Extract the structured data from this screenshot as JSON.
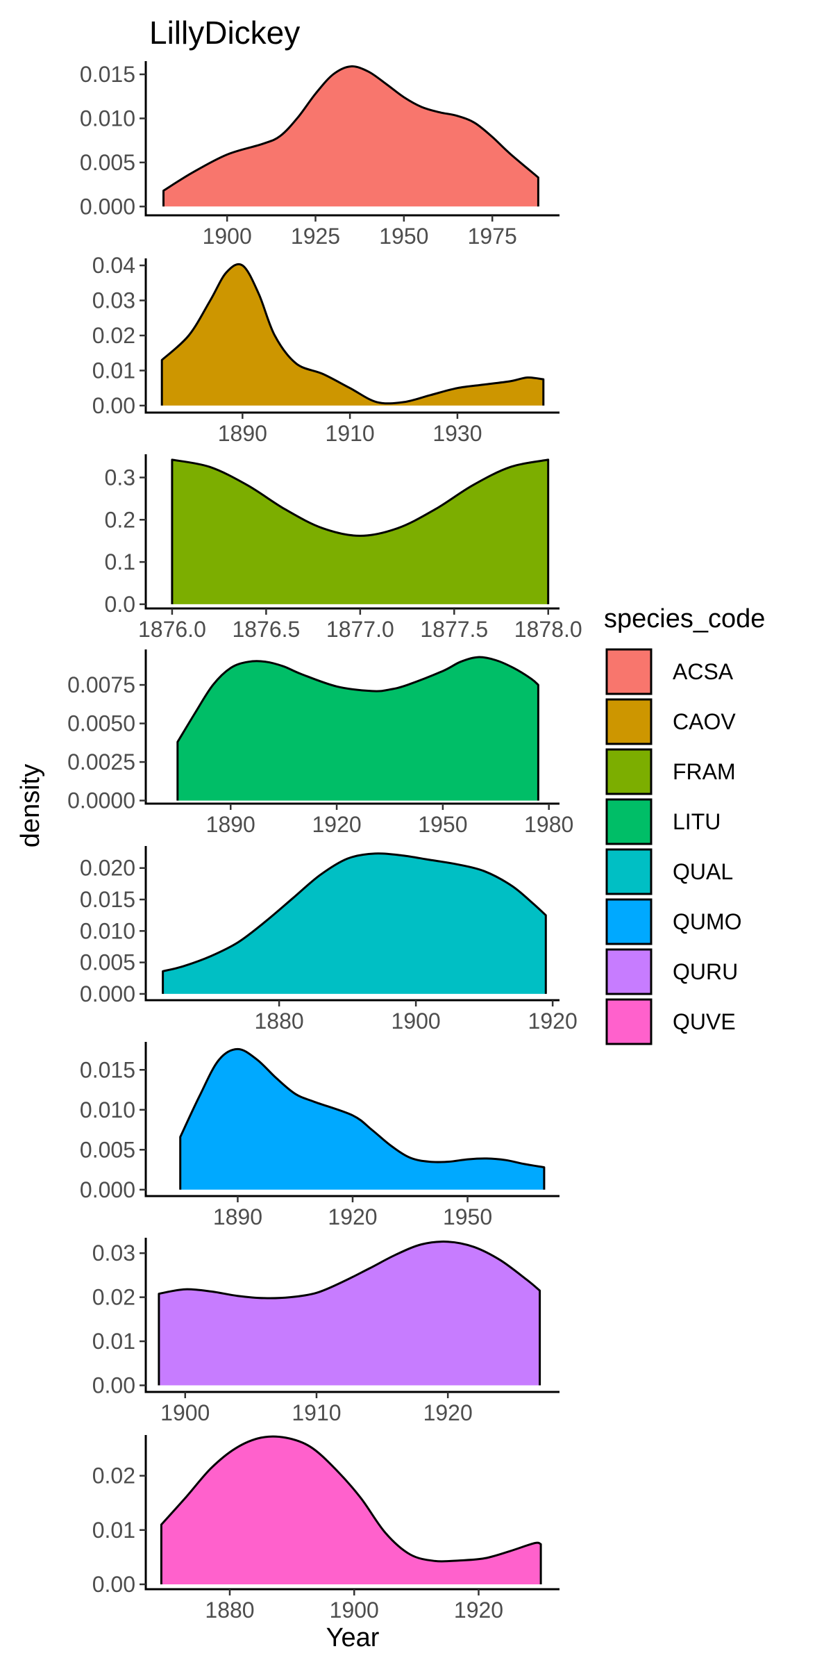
{
  "chart_data": {
    "type": "area",
    "title": "LillyDickey",
    "xlabel": "Year",
    "ylabel": "density",
    "legend": {
      "title": "species_code",
      "position": "right",
      "entries": [
        {
          "name": "ACSA",
          "color": "#F8766D"
        },
        {
          "name": "CAOV",
          "color": "#CD9600"
        },
        {
          "name": "FRAM",
          "color": "#7CAE00"
        },
        {
          "name": "LITU",
          "color": "#00BE67"
        },
        {
          "name": "QUAL",
          "color": "#00BFC4"
        },
        {
          "name": "QUMO",
          "color": "#00A9FF"
        },
        {
          "name": "QURU",
          "color": "#C77CFF"
        },
        {
          "name": "QUVE",
          "color": "#FF61CC"
        }
      ]
    },
    "grid": false,
    "panels": [
      {
        "name": "ACSA",
        "color": "#F8766D",
        "xlim": [
          1877,
          1994
        ],
        "ylim": [
          -0.001,
          0.0165
        ],
        "xticks": [
          1900,
          1925,
          1950,
          1975
        ],
        "xtick_labels": [
          "1900",
          "1925",
          "1950",
          "1975"
        ],
        "yticks": [
          0,
          0.005,
          0.01,
          0.015
        ],
        "ytick_labels": [
          "0.000",
          "0.005",
          "0.010",
          "0.015"
        ],
        "x": [
          1882,
          1890,
          1900,
          1910,
          1915,
          1920,
          1925,
          1930,
          1935,
          1940,
          1945,
          1950,
          1955,
          1960,
          1965,
          1970,
          1975,
          1980,
          1988
        ],
        "y": [
          0.0018,
          0.0038,
          0.0059,
          0.0071,
          0.008,
          0.0101,
          0.0128,
          0.015,
          0.0159,
          0.0153,
          0.0139,
          0.0124,
          0.0113,
          0.0107,
          0.0103,
          0.0095,
          0.0079,
          0.006,
          0.0033
        ]
      },
      {
        "name": "CAOV",
        "color": "#CD9600",
        "xlim": [
          1872,
          1949
        ],
        "ylim": [
          -0.002,
          0.042
        ],
        "xticks": [
          1890,
          1910,
          1930
        ],
        "xtick_labels": [
          "1890",
          "1910",
          "1930"
        ],
        "yticks": [
          0,
          0.01,
          0.02,
          0.03,
          0.04
        ],
        "ytick_labels": [
          "0.00",
          "0.01",
          "0.02",
          "0.03",
          "0.04"
        ],
        "x": [
          1875,
          1880,
          1884,
          1887,
          1890,
          1893,
          1896,
          1900,
          1905,
          1910,
          1915,
          1920,
          1925,
          1930,
          1935,
          1940,
          1943,
          1946
        ],
        "y": [
          0.013,
          0.02,
          0.03,
          0.038,
          0.04,
          0.032,
          0.02,
          0.012,
          0.009,
          0.005,
          0.001,
          0.001,
          0.003,
          0.005,
          0.006,
          0.007,
          0.008,
          0.0075
        ]
      },
      {
        "name": "FRAM",
        "color": "#7CAE00",
        "xlim": [
          1875.86,
          1878.06
        ],
        "ylim": [
          -0.01,
          0.355
        ],
        "xticks": [
          1876.0,
          1876.5,
          1877.0,
          1877.5,
          1878.0
        ],
        "xtick_labels": [
          "1876.0",
          "1876.5",
          "1877.0",
          "1877.5",
          "1878.0"
        ],
        "yticks": [
          0,
          0.1,
          0.2,
          0.3
        ],
        "ytick_labels": [
          "0.0",
          "0.1",
          "0.2",
          "0.3"
        ],
        "x": [
          1876.0,
          1876.2,
          1876.4,
          1876.6,
          1876.8,
          1877.0,
          1877.2,
          1877.4,
          1877.6,
          1877.8,
          1878.0
        ],
        "y": [
          0.342,
          0.325,
          0.282,
          0.225,
          0.18,
          0.162,
          0.18,
          0.225,
          0.282,
          0.325,
          0.342
        ]
      },
      {
        "name": "LITU",
        "color": "#00BE67",
        "xlim": [
          1866,
          1983
        ],
        "ylim": [
          -0.0002,
          0.0098
        ],
        "xticks": [
          1890,
          1920,
          1950,
          1980
        ],
        "xtick_labels": [
          "1890",
          "1920",
          "1950",
          "1980"
        ],
        "yticks": [
          0,
          0.0025,
          0.005,
          0.0075
        ],
        "ytick_labels": [
          "0.0000",
          "0.0025",
          "0.0050",
          "0.0075"
        ],
        "x": [
          1875,
          1880,
          1885,
          1890,
          1895,
          1900,
          1905,
          1910,
          1920,
          1930,
          1935,
          1940,
          1950,
          1955,
          1960,
          1965,
          1970,
          1975,
          1977
        ],
        "y": [
          0.0038,
          0.0057,
          0.0075,
          0.0086,
          0.009,
          0.009,
          0.0087,
          0.0082,
          0.0074,
          0.0071,
          0.0072,
          0.0075,
          0.0084,
          0.009,
          0.0093,
          0.0091,
          0.0086,
          0.0079,
          0.0075
        ]
      },
      {
        "name": "QUAL",
        "color": "#00BFC4",
        "xlim": [
          1860.5,
          1921
        ],
        "ylim": [
          -0.001,
          0.0235
        ],
        "xticks": [
          1880,
          1900,
          1920
        ],
        "xtick_labels": [
          "1880",
          "1900",
          "1920"
        ],
        "yticks": [
          0,
          0.005,
          0.01,
          0.015,
          0.02
        ],
        "ytick_labels": [
          "0.000",
          "0.005",
          "0.010",
          "0.015",
          "0.020"
        ],
        "x": [
          1863,
          1866,
          1870,
          1874,
          1878,
          1882,
          1886,
          1890,
          1894,
          1898,
          1902,
          1906,
          1910,
          1914,
          1917,
          1919
        ],
        "y": [
          0.0036,
          0.0044,
          0.006,
          0.0082,
          0.0115,
          0.0152,
          0.0189,
          0.0215,
          0.0223,
          0.022,
          0.0213,
          0.0206,
          0.0195,
          0.0172,
          0.0145,
          0.0125
        ]
      },
      {
        "name": "QUMO",
        "color": "#00A9FF",
        "xlim": [
          1866,
          1974
        ],
        "ylim": [
          -0.0008,
          0.0185
        ],
        "xticks": [
          1890,
          1920,
          1950
        ],
        "xtick_labels": [
          "1890",
          "1920",
          "1950"
        ],
        "yticks": [
          0,
          0.005,
          0.01,
          0.015
        ],
        "ytick_labels": [
          "0.000",
          "0.005",
          "0.010",
          "0.015"
        ],
        "x": [
          1875,
          1880,
          1885,
          1890,
          1895,
          1900,
          1905,
          1910,
          1920,
          1925,
          1930,
          1935,
          1940,
          1945,
          1950,
          1955,
          1960,
          1965,
          1970
        ],
        "y": [
          0.0066,
          0.0117,
          0.0162,
          0.0176,
          0.0163,
          0.014,
          0.012,
          0.011,
          0.0093,
          0.0075,
          0.0055,
          0.004,
          0.0035,
          0.0035,
          0.0038,
          0.0039,
          0.0037,
          0.0032,
          0.0028
        ]
      },
      {
        "name": "QURU",
        "color": "#C77CFF",
        "xlim": [
          1897,
          1928.5
        ],
        "ylim": [
          -0.0015,
          0.0335
        ],
        "xticks": [
          1900,
          1910,
          1920
        ],
        "xtick_labels": [
          "1900",
          "1910",
          "1920"
        ],
        "yticks": [
          0,
          0.01,
          0.02,
          0.03
        ],
        "ytick_labels": [
          "0.00",
          "0.01",
          "0.02",
          "0.03"
        ],
        "x": [
          1898,
          1900,
          1902,
          1904,
          1906,
          1908,
          1910,
          1912,
          1914,
          1916,
          1918,
          1920,
          1922,
          1924,
          1926,
          1927
        ],
        "y": [
          0.0208,
          0.0218,
          0.0213,
          0.0203,
          0.0198,
          0.02,
          0.021,
          0.0235,
          0.0265,
          0.0296,
          0.032,
          0.0326,
          0.0314,
          0.0284,
          0.024,
          0.0215
        ]
      },
      {
        "name": "QUVE",
        "color": "#FF61CC",
        "xlim": [
          1866.5,
          1933
        ],
        "ylim": [
          -0.0009,
          0.0275
        ],
        "xticks": [
          1880,
          1900,
          1920
        ],
        "xtick_labels": [
          "1880",
          "1900",
          "1920"
        ],
        "yticks": [
          0,
          0.01,
          0.02
        ],
        "ytick_labels": [
          "0.00",
          "0.01",
          "0.02"
        ],
        "x": [
          1869,
          1873,
          1877,
          1881,
          1885,
          1889,
          1893,
          1897,
          1901,
          1905,
          1909,
          1913,
          1917,
          1921,
          1925,
          1929,
          1930
        ],
        "y": [
          0.011,
          0.0161,
          0.0214,
          0.0251,
          0.027,
          0.027,
          0.0253,
          0.0212,
          0.016,
          0.0095,
          0.0055,
          0.0043,
          0.0044,
          0.0048,
          0.0061,
          0.0076,
          0.0074
        ]
      }
    ]
  }
}
